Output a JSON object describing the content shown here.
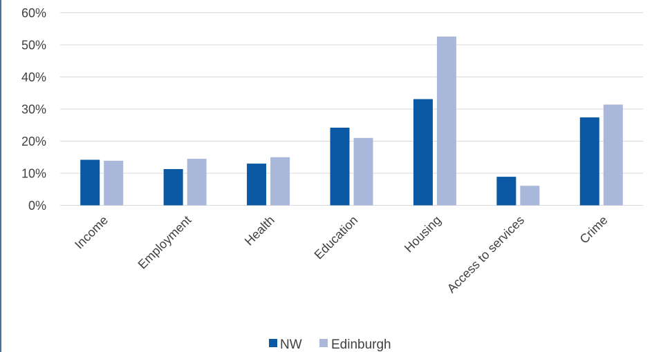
{
  "chart_data": {
    "type": "bar",
    "categories": [
      "Income",
      "Employment",
      "Health",
      "Education",
      "Housing",
      "Access to services",
      "Crime"
    ],
    "series": [
      {
        "name": "NW",
        "values": [
          14.2,
          11.3,
          13.0,
          24.2,
          33.1,
          8.9,
          27.4
        ],
        "color": "#0b59a4"
      },
      {
        "name": "Edinburgh",
        "values": [
          13.9,
          14.5,
          15.0,
          21.0,
          52.6,
          6.1,
          31.4
        ],
        "color": "#aab8dc"
      }
    ],
    "y_ticks": [
      "0%",
      "10%",
      "20%",
      "30%",
      "40%",
      "50%",
      "60%"
    ],
    "ylim": [
      0,
      60
    ],
    "grid": true,
    "legend": "bottom-center",
    "title": "",
    "xlabel": "",
    "ylabel": ""
  }
}
